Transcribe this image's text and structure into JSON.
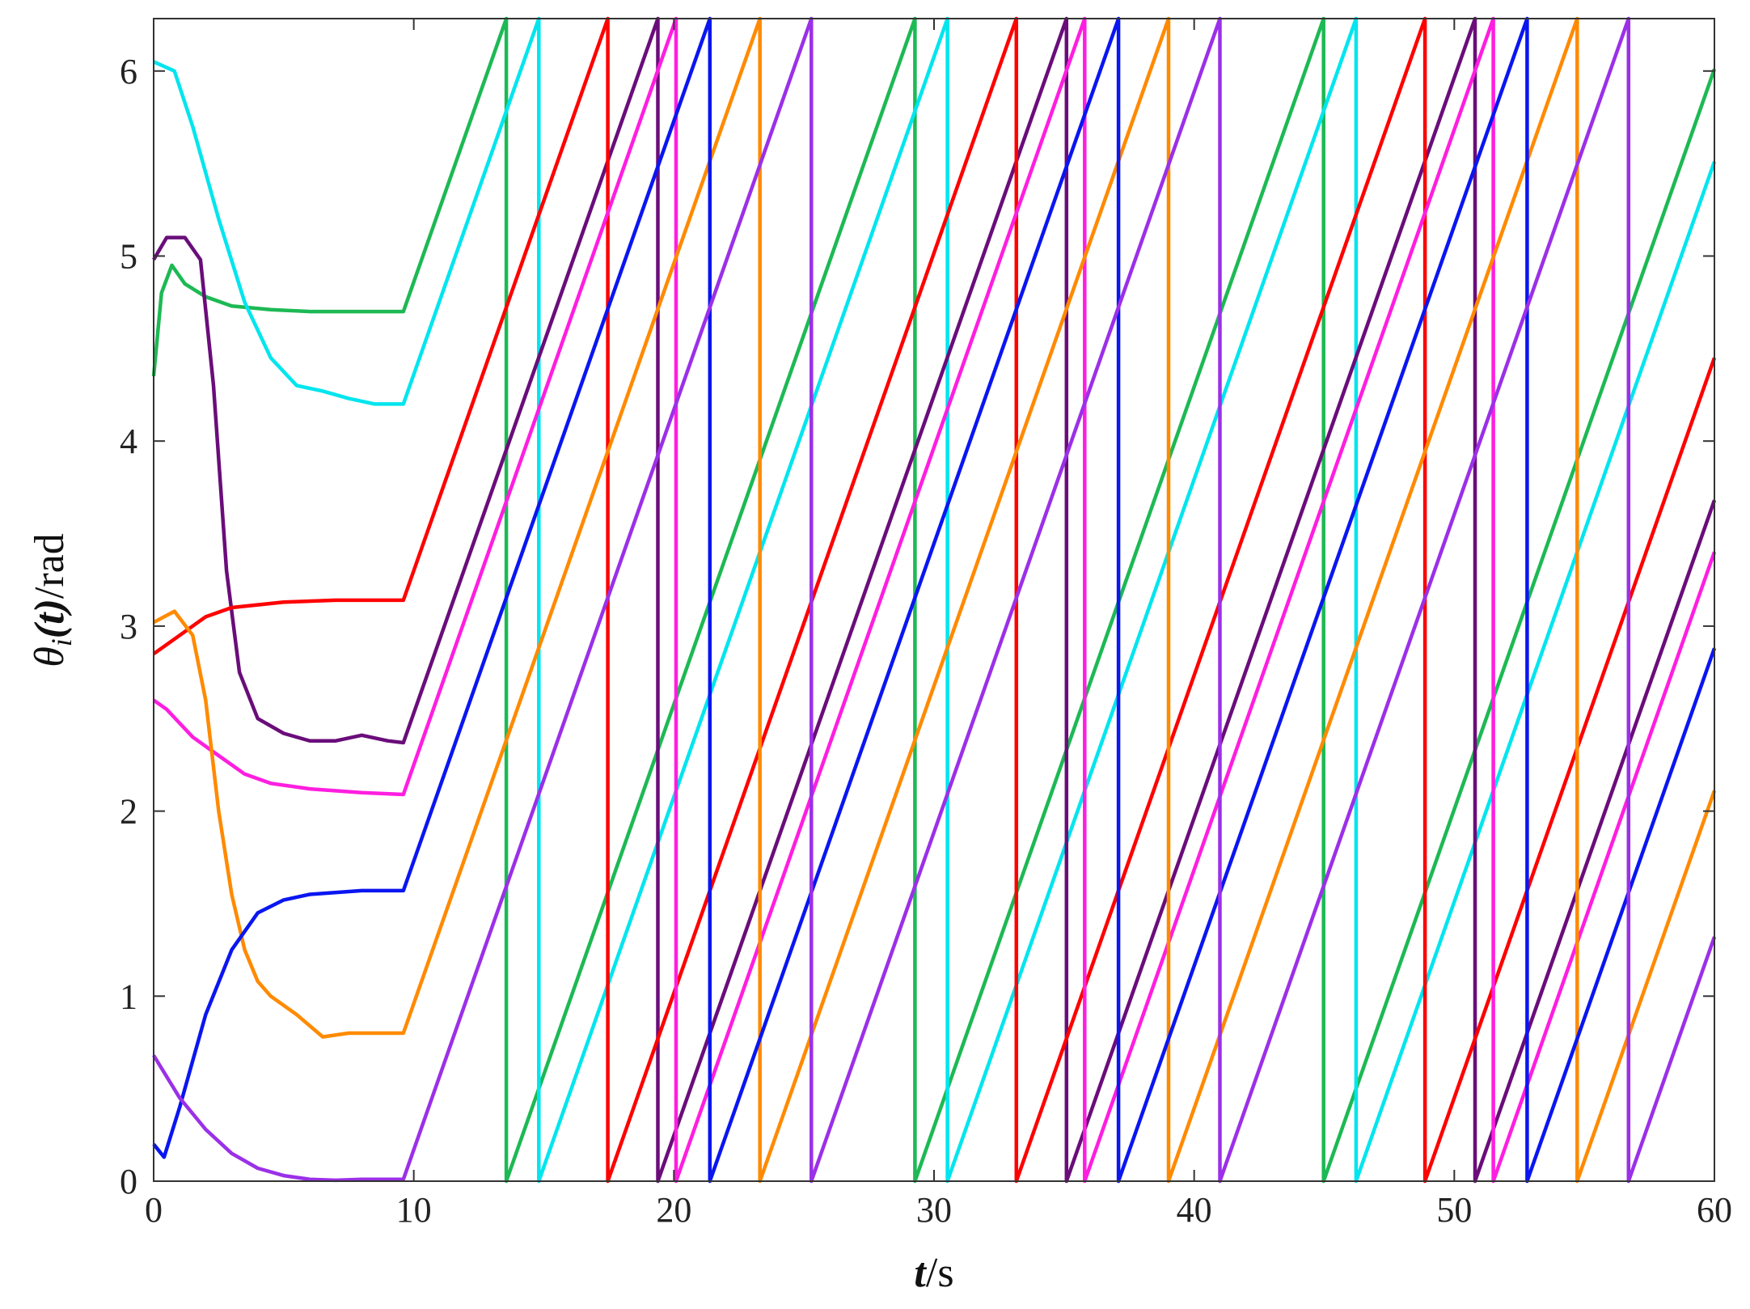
{
  "chart_data": {
    "type": "line",
    "xlabel_main": "t",
    "xlabel_unit": "/s",
    "ylabel_main": "θ",
    "ylabel_sub": "i",
    "ylabel_arg": "(t)",
    "ylabel_unit": "/rad",
    "xlim": [
      0,
      60
    ],
    "ylim": [
      0,
      6.2832
    ],
    "xticks": [
      0,
      10,
      20,
      30,
      40,
      50,
      60
    ],
    "yticks": [
      0,
      1,
      2,
      3,
      4,
      5,
      6
    ],
    "xtick_labels": [
      "0",
      "10",
      "20",
      "30",
      "40",
      "50",
      "60"
    ],
    "ytick_labels": [
      "0",
      "1",
      "2",
      "3",
      "4",
      "5",
      "6"
    ],
    "grid": false,
    "wrap_period": 6.2832,
    "series": [
      {
        "color": "#1db954",
        "transient": [
          [
            0,
            4.35
          ],
          [
            0.3,
            4.8
          ],
          [
            0.7,
            4.95
          ],
          [
            1.2,
            4.85
          ],
          [
            2,
            4.78
          ],
          [
            3,
            4.73
          ],
          [
            4.5,
            4.71
          ],
          [
            6,
            4.7
          ],
          [
            8,
            4.7
          ],
          [
            9.6,
            4.7
          ]
        ],
        "slope": 0.4
      },
      {
        "color": "#00e5ee",
        "transient": [
          [
            0,
            6.05
          ],
          [
            0.8,
            6.0
          ],
          [
            1.5,
            5.7
          ],
          [
            2.5,
            5.2
          ],
          [
            3.5,
            4.75
          ],
          [
            4.5,
            4.45
          ],
          [
            5.5,
            4.3
          ],
          [
            6.5,
            4.27
          ],
          [
            7.5,
            4.23
          ],
          [
            8.5,
            4.2
          ],
          [
            9.6,
            4.2
          ]
        ],
        "slope": 0.4
      },
      {
        "color": "#6a0d7a",
        "transient": [
          [
            0,
            4.98
          ],
          [
            0.5,
            5.1
          ],
          [
            1.2,
            5.1
          ],
          [
            1.8,
            4.98
          ],
          [
            2.3,
            4.3
          ],
          [
            2.8,
            3.3
          ],
          [
            3.3,
            2.75
          ],
          [
            4,
            2.5
          ],
          [
            5,
            2.42
          ],
          [
            6,
            2.38
          ],
          [
            7,
            2.38
          ],
          [
            8,
            2.41
          ],
          [
            9,
            2.38
          ],
          [
            9.6,
            2.37
          ]
        ],
        "slope": 0.4
      },
      {
        "color": "#ff0000",
        "transient": [
          [
            0,
            2.85
          ],
          [
            1,
            2.95
          ],
          [
            2,
            3.05
          ],
          [
            3,
            3.1
          ],
          [
            5,
            3.13
          ],
          [
            7,
            3.14
          ],
          [
            9.6,
            3.14
          ]
        ],
        "slope": 0.4
      },
      {
        "color": "#ff1ee0",
        "transient": [
          [
            0,
            2.6
          ],
          [
            0.5,
            2.55
          ],
          [
            1.5,
            2.4
          ],
          [
            2.5,
            2.3
          ],
          [
            3.5,
            2.2
          ],
          [
            4.5,
            2.15
          ],
          [
            6,
            2.12
          ],
          [
            8,
            2.1
          ],
          [
            9.6,
            2.09
          ]
        ],
        "slope": 0.4
      },
      {
        "color": "#ff8a00",
        "transient": [
          [
            0,
            3.02
          ],
          [
            0.8,
            3.08
          ],
          [
            1.5,
            2.95
          ],
          [
            2,
            2.6
          ],
          [
            2.5,
            2.0
          ],
          [
            3,
            1.55
          ],
          [
            3.5,
            1.25
          ],
          [
            4,
            1.08
          ],
          [
            4.5,
            1.0
          ],
          [
            5.5,
            0.9
          ],
          [
            6.5,
            0.78
          ],
          [
            7.5,
            0.8
          ],
          [
            8.5,
            0.8
          ],
          [
            9.6,
            0.8
          ]
        ],
        "slope": 0.4
      },
      {
        "color": "#0a16f0",
        "transient": [
          [
            0,
            0.2
          ],
          [
            0.4,
            0.13
          ],
          [
            1,
            0.4
          ],
          [
            2,
            0.9
          ],
          [
            3,
            1.25
          ],
          [
            4,
            1.45
          ],
          [
            5,
            1.52
          ],
          [
            6,
            1.55
          ],
          [
            8,
            1.57
          ],
          [
            9.6,
            1.57
          ]
        ],
        "slope": 0.4
      },
      {
        "color": "#9b30e8",
        "transient": [
          [
            0,
            0.68
          ],
          [
            1,
            0.45
          ],
          [
            2,
            0.28
          ],
          [
            3,
            0.15
          ],
          [
            4,
            0.07
          ],
          [
            5,
            0.03
          ],
          [
            6,
            0.01
          ],
          [
            7,
            0.005
          ],
          [
            8,
            0.01
          ],
          [
            9.6,
            0.01
          ]
        ],
        "slope": 0.4
      }
    ]
  }
}
